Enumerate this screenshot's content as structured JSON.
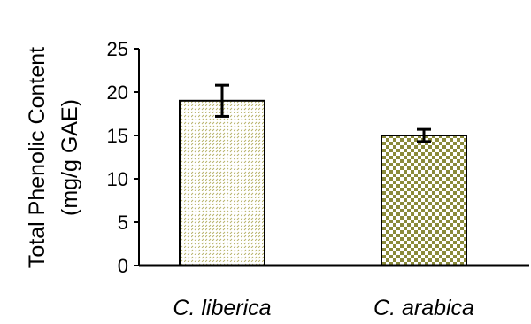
{
  "chart_data": {
    "type": "bar",
    "title": "",
    "xlabel": "",
    "ylabel_lines": [
      "Total Phenolic Content",
      "(mg/g GAE)"
    ],
    "categories": [
      "C. liberica",
      "C. arabica"
    ],
    "values": [
      19.0,
      15.0
    ],
    "error": [
      1.8,
      0.7
    ],
    "ylim": [
      0,
      25
    ],
    "yticks": [
      0,
      5,
      10,
      15,
      20,
      25
    ],
    "grid": false,
    "legend": "none",
    "bar_styles": [
      {
        "pattern": "dashed-diagonal-dots",
        "color": "#a9a24a"
      },
      {
        "pattern": "checkerboard",
        "color": "#8a8a3a"
      }
    ]
  }
}
